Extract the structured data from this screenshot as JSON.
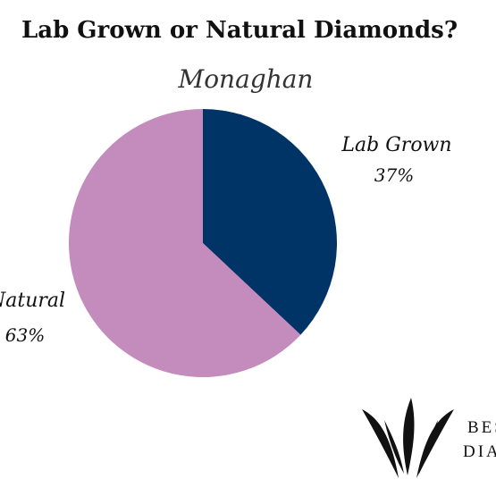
{
  "chart_data": {
    "type": "pie",
    "title": "Lab Grown or Natural Diamonds?",
    "subtitle": "Monaghan",
    "slices": [
      {
        "label": "Lab Grown",
        "value": 37,
        "value_label": "37%",
        "color": "#003366"
      },
      {
        "label": "Natural",
        "value": 63,
        "value_label": "63%",
        "color": "#c48bbd"
      }
    ],
    "start_angle": "12 o'clock",
    "direction": "clockwise"
  },
  "logo": {
    "line1": "BES",
    "line2": "DIAI"
  }
}
